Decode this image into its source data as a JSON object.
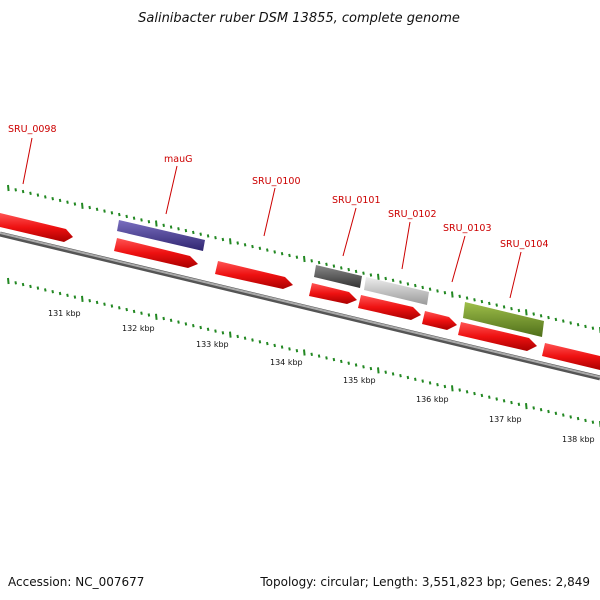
{
  "title": "Salinibacter ruber DSM 13855, complete genome",
  "footer": {
    "accession": "Accession: NC_007677",
    "summary": "Topology: circular; Length: 3,551,823 bp; Genes: 2,849"
  },
  "colors": {
    "gene_red": "#ee1111",
    "backbone": "#777777",
    "tick_green": "#228822",
    "label_red": "#cc0000",
    "mauG_purple": "#4b3f8f",
    "SRU_0101_dark_gray": "#555555",
    "SRU_0102_light_gray": "#bbbbbb",
    "SRU_0104_olive": "#6f8f2a"
  },
  "genes": [
    {
      "label": "SRU_0098"
    },
    {
      "label": "mauG"
    },
    {
      "label": "SRU_0100"
    },
    {
      "label": "SRU_0101"
    },
    {
      "label": "SRU_0102"
    },
    {
      "label": "SRU_0103"
    },
    {
      "label": "SRU_0104"
    }
  ],
  "kbp_ticks": [
    "131 kbp",
    "132 kbp",
    "133 kbp",
    "134 kbp",
    "135 kbp",
    "136 kbp",
    "137 kbp",
    "138 kbp"
  ]
}
